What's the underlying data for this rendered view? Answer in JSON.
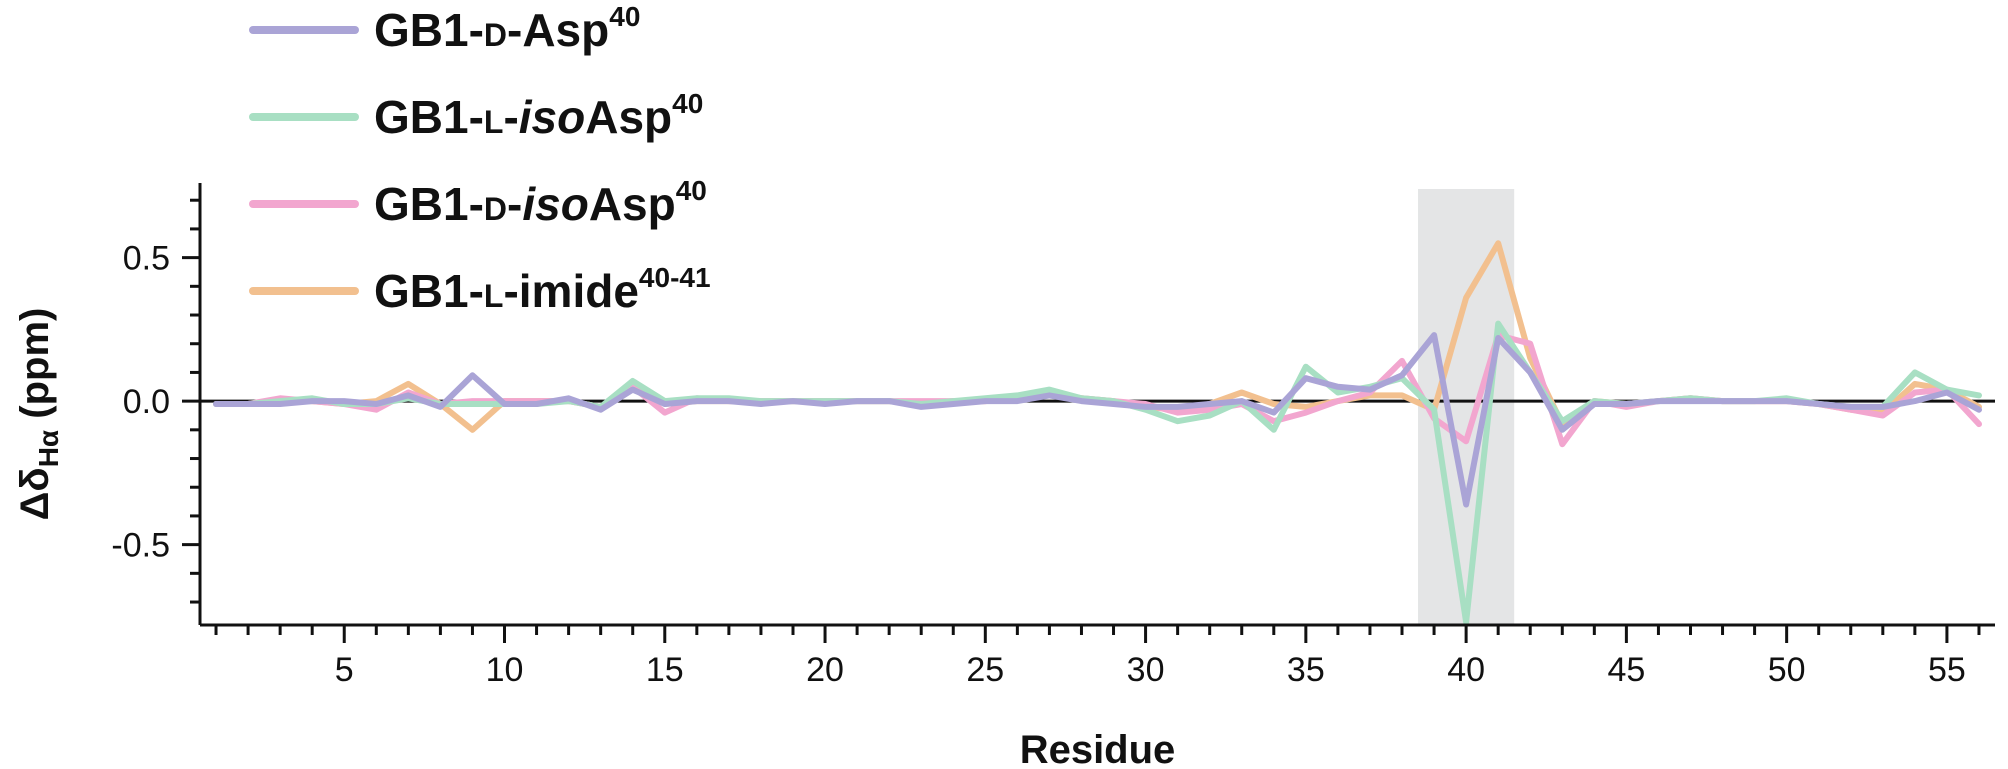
{
  "chart_data": {
    "type": "line",
    "xlabel": "Residue",
    "ylabel": {
      "main": "Δδ",
      "sub": "Hα",
      "unit": " (ppm)"
    },
    "xlim": [
      0.5,
      56.5
    ],
    "ylim": [
      -0.78,
      0.76
    ],
    "x_ticks": [
      5,
      10,
      15,
      20,
      25,
      30,
      35,
      40,
      45,
      50,
      55
    ],
    "y_ticks": [
      {
        "value": 0.5,
        "label": "0.5"
      },
      {
        "value": 0.0,
        "label": "0.0"
      },
      {
        "value": -0.5,
        "label": "-0.5"
      }
    ],
    "highlight_region": [
      38.5,
      41.5
    ],
    "x": [
      1,
      2,
      3,
      4,
      5,
      6,
      7,
      8,
      9,
      10,
      11,
      12,
      13,
      14,
      15,
      16,
      17,
      18,
      19,
      20,
      21,
      22,
      23,
      24,
      25,
      26,
      27,
      28,
      29,
      30,
      31,
      32,
      33,
      34,
      35,
      36,
      37,
      38,
      39,
      40,
      41,
      42,
      43,
      44,
      45,
      46,
      47,
      48,
      49,
      50,
      51,
      52,
      53,
      54,
      55,
      56
    ],
    "series": [
      {
        "key": "limide",
        "legend": {
          "pre": "GB1-",
          "sc": "L",
          "mid": "-imide",
          "italic": "",
          "post": "",
          "sup": "40-41"
        },
        "color": "#f2c08f",
        "values": [
          -0.01,
          -0.01,
          0.0,
          0.0,
          -0.01,
          0.0,
          0.06,
          -0.01,
          -0.1,
          0.0,
          0.0,
          0.0,
          -0.02,
          0.06,
          -0.01,
          0.0,
          0.0,
          0.0,
          0.0,
          0.0,
          0.0,
          0.0,
          -0.01,
          0.0,
          0.0,
          0.01,
          0.03,
          0.01,
          0.0,
          -0.02,
          -0.03,
          -0.01,
          0.03,
          -0.01,
          -0.02,
          0.0,
          0.02,
          0.02,
          -0.03,
          0.36,
          0.55,
          0.15,
          -0.08,
          0.0,
          -0.01,
          0.0,
          0.01,
          0.0,
          0.0,
          0.0,
          -0.01,
          -0.03,
          -0.04,
          0.06,
          0.04,
          -0.02
        ]
      },
      {
        "key": "disoasp",
        "legend": {
          "pre": "GB1-",
          "sc": "D",
          "mid": "-",
          "italic": "iso",
          "post": "Asp",
          "sup": "40"
        },
        "color": "#f2a6cf",
        "values": [
          -0.01,
          -0.01,
          0.01,
          0.0,
          -0.01,
          -0.03,
          0.03,
          -0.01,
          0.0,
          0.0,
          0.0,
          0.0,
          -0.02,
          0.05,
          -0.04,
          0.01,
          0.0,
          0.0,
          0.0,
          0.0,
          0.0,
          0.0,
          0.0,
          0.0,
          0.0,
          0.01,
          0.03,
          0.01,
          0.0,
          -0.01,
          -0.04,
          -0.03,
          -0.01,
          -0.07,
          -0.04,
          0.0,
          0.03,
          0.14,
          -0.06,
          -0.14,
          0.23,
          0.2,
          -0.15,
          0.0,
          -0.02,
          0.0,
          0.01,
          0.0,
          0.0,
          0.0,
          -0.01,
          -0.03,
          -0.05,
          0.03,
          0.04,
          -0.08
        ]
      },
      {
        "key": "lisoasp",
        "legend": {
          "pre": "GB1-",
          "sc": "L",
          "mid": "-",
          "italic": "iso",
          "post": "Asp",
          "sup": "40"
        },
        "color": "#a8dfc3",
        "values": [
          -0.01,
          -0.01,
          0.0,
          0.01,
          -0.01,
          -0.01,
          0.01,
          -0.01,
          -0.01,
          -0.01,
          -0.01,
          0.0,
          -0.02,
          0.07,
          0.0,
          0.01,
          0.01,
          0.0,
          0.0,
          0.0,
          0.0,
          0.0,
          -0.01,
          0.0,
          0.01,
          0.02,
          0.04,
          0.01,
          0.0,
          -0.03,
          -0.07,
          -0.05,
          0.0,
          -0.1,
          0.12,
          0.03,
          0.05,
          0.08,
          -0.03,
          -0.77,
          0.27,
          0.1,
          -0.07,
          0.0,
          -0.01,
          0.0,
          0.01,
          0.0,
          0.0,
          0.01,
          -0.01,
          -0.02,
          -0.02,
          0.1,
          0.04,
          0.02
        ]
      },
      {
        "key": "dasp",
        "legend": {
          "pre": "GB1-",
          "sc": "D",
          "mid": "-Asp",
          "italic": "",
          "post": "",
          "sup": "40"
        },
        "color": "#aaa4d6",
        "values": [
          -0.01,
          -0.01,
          -0.01,
          0.0,
          0.0,
          -0.01,
          0.02,
          -0.02,
          0.09,
          -0.01,
          -0.01,
          0.01,
          -0.03,
          0.04,
          -0.01,
          0.0,
          0.0,
          -0.01,
          0.0,
          -0.01,
          0.0,
          0.0,
          -0.02,
          -0.01,
          0.0,
          0.0,
          0.02,
          0.0,
          -0.01,
          -0.02,
          -0.02,
          -0.01,
          0.0,
          -0.04,
          0.08,
          0.05,
          0.04,
          0.09,
          0.23,
          -0.36,
          0.22,
          0.1,
          -0.1,
          -0.01,
          -0.01,
          0.0,
          0.0,
          0.0,
          0.0,
          0.0,
          -0.01,
          -0.02,
          -0.02,
          0.0,
          0.03,
          -0.03
        ]
      }
    ],
    "legend_order": [
      "dasp",
      "lisoasp",
      "disoasp",
      "limide"
    ]
  }
}
